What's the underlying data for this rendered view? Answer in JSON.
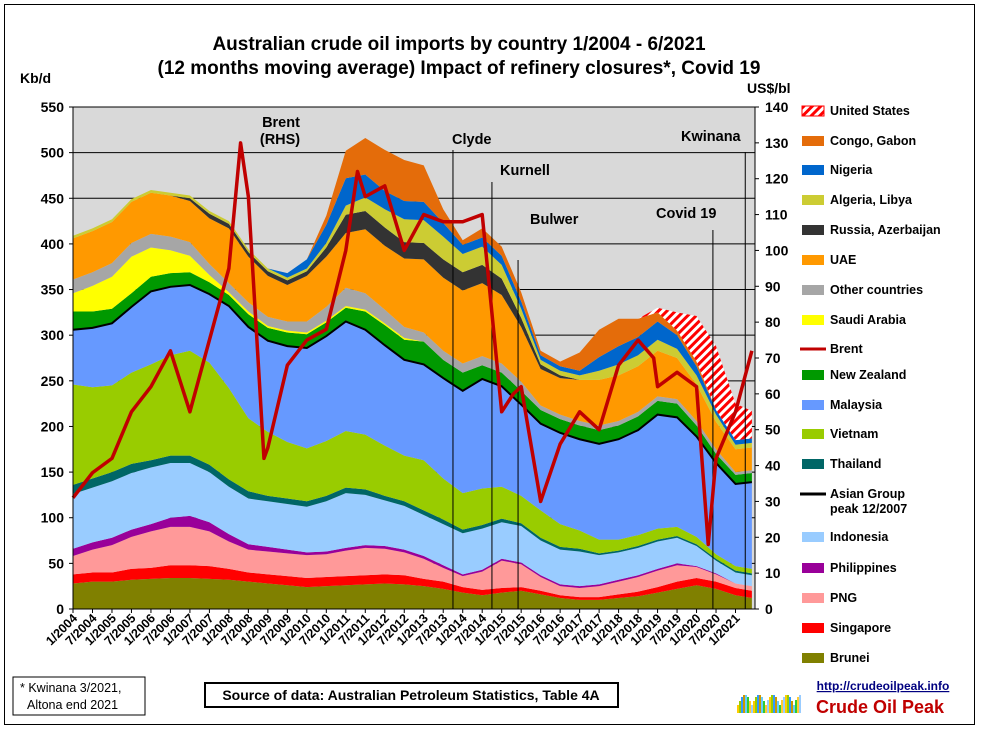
{
  "chart_data": {
    "type": "area",
    "title_line1": "Australian crude oil imports  by country 1/2004 - 6/2021",
    "title_line2": "(12 months moving average) Impact of refinery closures*, Covid 19",
    "ylabel_left": "Kb/d",
    "ylabel_right": "US$/bl",
    "ylim_left": [
      0,
      550
    ],
    "ylim_right": [
      0,
      140
    ],
    "yticks_left": [
      0,
      50,
      100,
      150,
      200,
      250,
      300,
      350,
      400,
      450,
      500,
      550
    ],
    "yticks_right": [
      0,
      10,
      20,
      30,
      40,
      50,
      60,
      70,
      80,
      90,
      100,
      110,
      120,
      130,
      140
    ],
    "x_tick_labels": [
      "1/2004",
      "7/2004",
      "1/2005",
      "7/2005",
      "1/2006",
      "7/2006",
      "1/2007",
      "7/2007",
      "1/2008",
      "7/2008",
      "1/2009",
      "7/2009",
      "1/2010",
      "7/2010",
      "1/2011",
      "7/2011",
      "1/2012",
      "7/2012",
      "1/2013",
      "7/2013",
      "1/2014",
      "7/2014",
      "1/2015",
      "7/2015",
      "1/2016",
      "7/2016",
      "1/2017",
      "7/2017",
      "1/2018",
      "7/2018",
      "1/2019",
      "7/2019",
      "1/2020",
      "7/2020",
      "1/2021"
    ],
    "x_dates": [
      2004.0,
      2004.5,
      2005.0,
      2005.5,
      2006.0,
      2006.5,
      2007.0,
      2007.5,
      2008.0,
      2008.5,
      2009.0,
      2009.5,
      2010.0,
      2010.5,
      2011.0,
      2011.5,
      2012.0,
      2012.5,
      2013.0,
      2013.5,
      2014.0,
      2014.5,
      2015.0,
      2015.5,
      2016.0,
      2016.5,
      2017.0,
      2017.5,
      2018.0,
      2018.5,
      2019.0,
      2019.5,
      2020.0,
      2020.5,
      2021.0,
      2021.42
    ],
    "series": [
      {
        "name": "Brunei",
        "color": "#808000",
        "values": [
          28,
          30,
          30,
          32,
          33,
          34,
          34,
          33,
          32,
          30,
          28,
          26,
          24,
          25,
          26,
          27,
          28,
          27,
          25,
          22,
          18,
          15,
          18,
          20,
          16,
          12,
          10,
          10,
          12,
          14,
          18,
          22,
          26,
          22,
          15,
          12
        ]
      },
      {
        "name": "Singapore",
        "color": "#ff0000",
        "values": [
          10,
          10,
          10,
          12,
          12,
          14,
          14,
          14,
          12,
          10,
          10,
          10,
          10,
          10,
          10,
          10,
          10,
          10,
          8,
          8,
          6,
          6,
          5,
          4,
          4,
          3,
          3,
          3,
          4,
          5,
          6,
          8,
          8,
          8,
          8,
          8
        ]
      },
      {
        "name": "PNG",
        "color": "#ff9999",
        "values": [
          20,
          25,
          30,
          35,
          40,
          42,
          42,
          38,
          30,
          25,
          25,
          25,
          25,
          25,
          28,
          30,
          28,
          25,
          22,
          15,
          12,
          20,
          30,
          25,
          15,
          10,
          10,
          12,
          14,
          16,
          18,
          18,
          12,
          8,
          5,
          5
        ]
      },
      {
        "name": "Philippines",
        "color": "#990099",
        "values": [
          8,
          8,
          8,
          8,
          8,
          10,
          12,
          10,
          8,
          6,
          5,
          4,
          3,
          3,
          3,
          3,
          3,
          3,
          3,
          3,
          2,
          2,
          2,
          2,
          2,
          2,
          2,
          2,
          2,
          2,
          2,
          2,
          1,
          1,
          0,
          0
        ]
      },
      {
        "name": "Indonesia",
        "color": "#99ccff",
        "values": [
          60,
          60,
          62,
          62,
          62,
          60,
          58,
          55,
          52,
          50,
          50,
          50,
          50,
          55,
          60,
          55,
          50,
          48,
          45,
          45,
          45,
          45,
          40,
          40,
          38,
          38,
          38,
          32,
          30,
          30,
          30,
          28,
          22,
          14,
          12,
          12
        ]
      },
      {
        "name": "Thailand",
        "color": "#006666",
        "values": [
          10,
          10,
          10,
          10,
          8,
          8,
          8,
          8,
          8,
          8,
          6,
          6,
          6,
          6,
          6,
          6,
          5,
          5,
          5,
          5,
          4,
          4,
          4,
          3,
          3,
          3,
          3,
          2,
          2,
          2,
          2,
          2,
          2,
          2,
          2,
          2
        ]
      },
      {
        "name": "Vietnam",
        "color": "#99cc00",
        "values": [
          110,
          100,
          95,
          100,
          105,
          110,
          115,
          112,
          100,
          80,
          70,
          62,
          58,
          60,
          62,
          60,
          55,
          50,
          55,
          45,
          40,
          40,
          35,
          30,
          30,
          25,
          20,
          15,
          12,
          12,
          12,
          10,
          8,
          5,
          5,
          5
        ]
      },
      {
        "name": "Malaysia",
        "color": "#6699ff",
        "values": [
          60,
          65,
          68,
          72,
          80,
          75,
          72,
          75,
          90,
          100,
          100,
          105,
          110,
          115,
          120,
          115,
          110,
          105,
          105,
          110,
          112,
          120,
          110,
          100,
          95,
          100,
          100,
          105,
          110,
          115,
          125,
          120,
          110,
          100,
          90,
          95
        ]
      },
      {
        "name": "New Zealand",
        "color": "#009900",
        "values": [
          20,
          18,
          16,
          15,
          16,
          15,
          14,
          13,
          12,
          14,
          14,
          15,
          15,
          15,
          15,
          20,
          22,
          22,
          25,
          20,
          20,
          15,
          15,
          15,
          15,
          15,
          15,
          15,
          15,
          15,
          15,
          15,
          12,
          10,
          10,
          10
        ]
      },
      {
        "name": "Saudi Arabia",
        "color": "#ffff00",
        "values": [
          20,
          28,
          35,
          40,
          32,
          25,
          18,
          8,
          3,
          3,
          2,
          2,
          2,
          2,
          2,
          2,
          2,
          2,
          0,
          0,
          0,
          0,
          0,
          0,
          0,
          0,
          0,
          0,
          0,
          0,
          0,
          0,
          0,
          0,
          0,
          0
        ]
      },
      {
        "name": "Other countries",
        "color": "#a6a6a6",
        "values": [
          15,
          15,
          15,
          15,
          15,
          15,
          15,
          12,
          10,
          10,
          10,
          10,
          12,
          15,
          20,
          18,
          15,
          12,
          10,
          10,
          10,
          10,
          10,
          10,
          5,
          5,
          5,
          5,
          5,
          5,
          5,
          5,
          5,
          5,
          3,
          3
        ]
      },
      {
        "name": "UAE",
        "color": "#ff9900",
        "values": [
          45,
          45,
          45,
          45,
          45,
          45,
          45,
          50,
          60,
          50,
          45,
          40,
          50,
          55,
          60,
          70,
          70,
          75,
          80,
          80,
          80,
          80,
          75,
          60,
          40,
          40,
          45,
          50,
          50,
          50,
          50,
          45,
          40,
          30,
          25,
          25
        ]
      },
      {
        "name": "Russia, Azerbaijan",
        "color": "#333333",
        "values": [
          0,
          0,
          0,
          0,
          0,
          0,
          3,
          5,
          5,
          5,
          5,
          5,
          5,
          10,
          20,
          20,
          20,
          18,
          18,
          20,
          20,
          20,
          18,
          10,
          5,
          3,
          0,
          0,
          0,
          0,
          0,
          0,
          0,
          0,
          0,
          0
        ]
      },
      {
        "name": "Algeria, Libya",
        "color": "#cccc33",
        "values": [
          3,
          3,
          3,
          3,
          3,
          3,
          3,
          3,
          3,
          3,
          3,
          3,
          3,
          5,
          10,
          15,
          20,
          25,
          25,
          25,
          20,
          20,
          15,
          10,
          5,
          5,
          5,
          10,
          12,
          12,
          12,
          10,
          10,
          8,
          5,
          5
        ]
      },
      {
        "name": "Nigeria",
        "color": "#0066cc",
        "values": [
          0,
          0,
          0,
          0,
          0,
          0,
          0,
          0,
          0,
          0,
          0,
          5,
          10,
          20,
          30,
          25,
          20,
          20,
          20,
          15,
          10,
          10,
          10,
          8,
          5,
          5,
          5,
          15,
          20,
          20,
          20,
          15,
          10,
          5,
          5,
          5
        ]
      },
      {
        "name": "Congo, Gabon",
        "color": "#e46c0a",
        "values": [
          0,
          0,
          0,
          0,
          0,
          0,
          0,
          0,
          0,
          0,
          0,
          0,
          0,
          10,
          30,
          40,
          45,
          45,
          40,
          15,
          5,
          10,
          10,
          10,
          5,
          5,
          20,
          30,
          30,
          20,
          10,
          5,
          5,
          0,
          0,
          0
        ]
      },
      {
        "name": "United States",
        "color": "#ff0000",
        "values": [
          0,
          0,
          0,
          0,
          0,
          0,
          0,
          0,
          0,
          0,
          0,
          0,
          0,
          0,
          0,
          0,
          0,
          0,
          0,
          0,
          0,
          0,
          0,
          0,
          0,
          0,
          0,
          0,
          0,
          0,
          5,
          20,
          50,
          70,
          40,
          30
        ]
      }
    ],
    "asian_group_peak": {
      "name": "Asian Group peak 12/2007",
      "color": "#000000"
    },
    "brent": {
      "name": "Brent",
      "color": "#c00000",
      "axis": "right",
      "x": [
        2004.0,
        2004.5,
        2005.0,
        2005.5,
        2006.0,
        2006.5,
        2007.0,
        2007.5,
        2008.0,
        2008.3,
        2008.5,
        2008.9,
        2009.0,
        2009.5,
        2010.0,
        2010.5,
        2011.0,
        2011.3,
        2011.5,
        2012.0,
        2012.5,
        2013.0,
        2013.5,
        2014.0,
        2014.5,
        2015.0,
        2015.3,
        2015.5,
        2016.0,
        2016.5,
        2017.0,
        2017.5,
        2018.0,
        2018.5,
        2018.9,
        2019.0,
        2019.5,
        2020.0,
        2020.3,
        2020.5,
        2021.0,
        2021.42
      ],
      "values": [
        31,
        38,
        42,
        55,
        62,
        72,
        55,
        75,
        95,
        130,
        115,
        42,
        45,
        68,
        75,
        78,
        100,
        122,
        115,
        118,
        100,
        110,
        108,
        108,
        110,
        55,
        60,
        62,
        30,
        46,
        55,
        50,
        68,
        75,
        70,
        62,
        66,
        62,
        18,
        42,
        55,
        72
      ]
    },
    "annotations": [
      "Brent",
      "(RHS)",
      "Clyde",
      "Kurnell",
      "Bulwer",
      "Covid 19",
      "Kwinana"
    ],
    "note": [
      "* Kwinana 3/2021,",
      "Altona end 2021"
    ],
    "source": "Source of data: Australian Petroleum Statistics, Table 4A",
    "logo_url": "http://crudeoilpeak.info",
    "logo_name": "Crude Oil Peak"
  }
}
